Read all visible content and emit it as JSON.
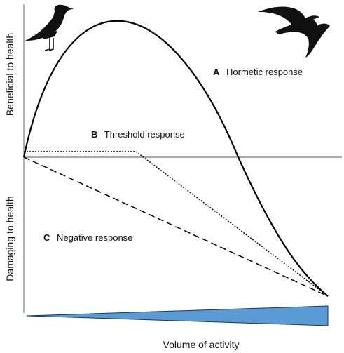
{
  "diagram": {
    "y_axis_upper_label": "Beneficial to health",
    "y_axis_lower_label": "Damaging to health",
    "x_axis_label": "Volume of activity",
    "curves": [
      {
        "letter": "A",
        "label": "Hormetic response",
        "style": "solid"
      },
      {
        "letter": "B",
        "label": "Threshold response",
        "style": "dotted"
      },
      {
        "letter": "C",
        "label": "Negative response",
        "style": "dashed"
      }
    ],
    "activity_wedge_color": "#5b9bd5",
    "icons": [
      "standing-bird-silhouette-icon",
      "flying-bird-silhouette-icon"
    ]
  }
}
